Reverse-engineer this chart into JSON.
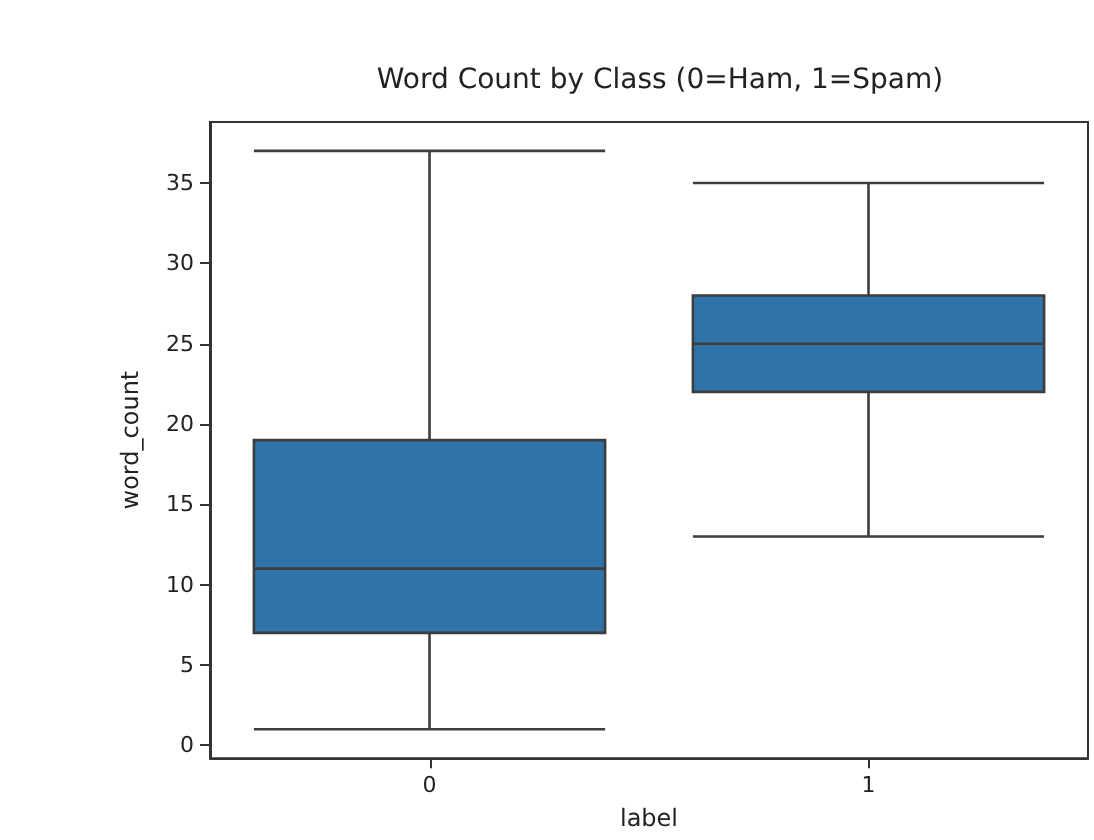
{
  "chart_data": {
    "type": "box",
    "title": "Word Count by Class (0=Ham, 1=Spam)",
    "xlabel": "label",
    "ylabel": "word_count",
    "categories": [
      "0",
      "1"
    ],
    "boxes": [
      {
        "low": 1,
        "q1": 7,
        "median": 11,
        "q3": 19,
        "high": 37
      },
      {
        "low": 13,
        "q1": 22,
        "median": 25,
        "q3": 28,
        "high": 35
      }
    ],
    "color": "#2f73a8",
    "ylim": [
      -0.8,
      38.8
    ],
    "yticks": [
      0,
      5,
      10,
      15,
      20,
      25,
      30,
      35
    ],
    "grid": false
  }
}
